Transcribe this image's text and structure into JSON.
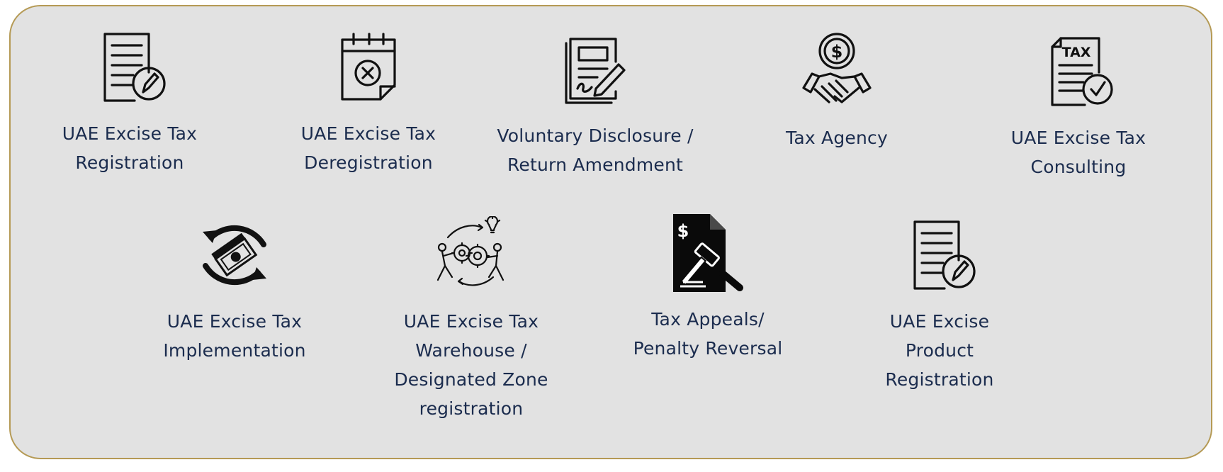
{
  "accent_color": "#b59a55",
  "text_color": "#1b2c4e",
  "panel_color": "#e2e2e2",
  "services": [
    {
      "label": "UAE Excise Tax\nRegistration",
      "icon": "document-pencil-icon"
    },
    {
      "label": "UAE Excise Tax\nDeregistration",
      "icon": "calendar-cancel-icon"
    },
    {
      "label": "Voluntary Disclosure /\nReturn Amendment",
      "icon": "signed-document-icon"
    },
    {
      "label": "Tax Agency",
      "icon": "handshake-dollar-icon"
    },
    {
      "label": "UAE Excise  Tax\nConsulting",
      "icon": "tax-document-check-icon"
    },
    {
      "label": "UAE Excise Tax\nImplementation",
      "icon": "money-cycle-icon"
    },
    {
      "label": "UAE Excise Tax\nWarehouse /\nDesignated Zone\nregistration",
      "icon": "teamwork-gears-icon"
    },
    {
      "label": "Tax Appeals/\nPenalty Reversal",
      "icon": "gavel-document-icon"
    },
    {
      "label": "UAE Excise\nProduct\nRegistration",
      "icon": "document-pencil-icon"
    }
  ]
}
